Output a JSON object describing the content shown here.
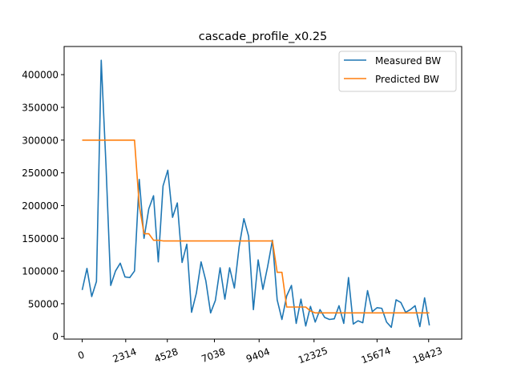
{
  "chart_data": {
    "type": "line",
    "title": "cascade_profile_x0.25",
    "xlabel": "",
    "ylabel": "",
    "x_ticks": [
      {
        "label": "0",
        "index": 0
      },
      {
        "label": "2314",
        "index": 9.15
      },
      {
        "label": "4528",
        "index": 17.9
      },
      {
        "label": "7038",
        "index": 27.8
      },
      {
        "label": "9404",
        "index": 37.2
      },
      {
        "label": "12325",
        "index": 48.75
      },
      {
        "label": "15674",
        "index": 62
      },
      {
        "label": "18423",
        "index": 72.85
      }
    ],
    "y_ticks": [
      0,
      50000,
      100000,
      150000,
      200000,
      250000,
      300000,
      350000,
      400000
    ],
    "ylim": [
      -4000,
      443000
    ],
    "xlim": [
      -3.8,
      79.8
    ],
    "grid": false,
    "legend_position": "top-right",
    "series": [
      {
        "name": "Measured BW",
        "color": "#1f77b4",
        "values": [
          71000,
          104000,
          61000,
          84000,
          422000,
          262000,
          78000,
          100000,
          112000,
          91000,
          90000,
          100000,
          240000,
          150000,
          195000,
          215000,
          114000,
          230000,
          254000,
          182000,
          204000,
          113000,
          141000,
          37000,
          66000,
          114000,
          85000,
          36000,
          55000,
          105000,
          57000,
          105000,
          74000,
          137000,
          180000,
          153000,
          41000,
          117000,
          72000,
          107000,
          147000,
          56000,
          26000,
          62000,
          78000,
          20000,
          57000,
          16000,
          46000,
          22000,
          41000,
          29000,
          26000,
          27000,
          47000,
          20000,
          90000,
          19000,
          24000,
          21000,
          70000,
          38000,
          44000,
          43000,
          22000,
          14000,
          56000,
          52000,
          37000,
          41000,
          47000,
          15000,
          59000,
          17000
        ]
      },
      {
        "name": "Predicted BW",
        "color": "#ff7f0e",
        "values": [
          300000,
          300000,
          300000,
          300000,
          300000,
          300000,
          300000,
          300000,
          300000,
          300000,
          300000,
          300000,
          200000,
          157000,
          157000,
          147000,
          147000,
          146000,
          146000,
          146000,
          146000,
          146000,
          146000,
          146000,
          146000,
          146000,
          146000,
          146000,
          146000,
          146000,
          146000,
          146000,
          146000,
          146000,
          146000,
          146000,
          146000,
          146000,
          146000,
          146000,
          146000,
          98000,
          98000,
          45000,
          45000,
          45000,
          45000,
          45000,
          39000,
          36000,
          36000,
          36000,
          36000,
          36000,
          36000,
          36000,
          36000,
          36000,
          36000,
          36000,
          36000,
          36000,
          36000,
          36000,
          36000,
          36000,
          36000,
          36000,
          36000,
          36000,
          36000,
          36000,
          36000,
          36000
        ]
      }
    ]
  }
}
